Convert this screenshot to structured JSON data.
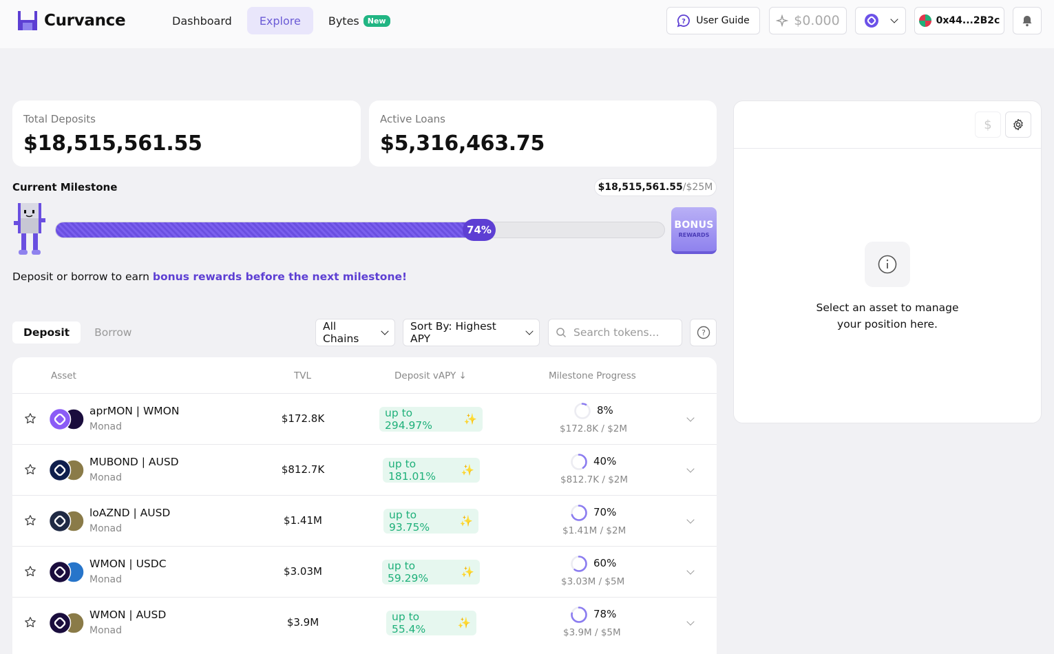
{
  "header": {
    "brand": "Curvance",
    "nav": [
      {
        "label": "Dashboard",
        "active": false
      },
      {
        "label": "Explore",
        "active": true
      },
      {
        "label": "Bytes",
        "active": false,
        "badge": "New"
      }
    ],
    "user_guide": "User Guide",
    "balance": "$0.000",
    "wallet": "0x44...2B2c"
  },
  "stats": {
    "deposits_label": "Total Deposits",
    "deposits_value": "$18,515,561.55",
    "loans_label": "Active Loans",
    "loans_value": "$5,316,463.75"
  },
  "milestone": {
    "title": "Current Milestone",
    "current": "$18,515,561.55",
    "target": "/$25M",
    "progress": 74,
    "progress_label": "74%",
    "bonus_line1": "BONUS",
    "bonus_line2": "REWARDS",
    "text_prefix": "Deposit or borrow to earn ",
    "text_highlight": "bonus rewards before the next milestone!"
  },
  "controls": {
    "tabs": [
      "Deposit",
      "Borrow"
    ],
    "chains": "All Chains",
    "sort": "Sort By: Highest APY",
    "search_placeholder": "Search tokens..."
  },
  "table": {
    "headers": {
      "asset": "Asset",
      "tvl": "TVL",
      "apy": "Deposit vAPY",
      "milestone": "Milestone Progress"
    },
    "rows": [
      {
        "pair": "aprMON | WMON",
        "chain": "Monad",
        "tvl": "$172.8K",
        "apy": "up to 294.97%",
        "progress": 8,
        "pct": "8%",
        "sub": "$172.8K / $2M"
      },
      {
        "pair": "MUBOND | AUSD",
        "chain": "Monad",
        "tvl": "$812.7K",
        "apy": "up to 181.01%",
        "progress": 40,
        "pct": "40%",
        "sub": "$812.7K / $2M"
      },
      {
        "pair": "loAZND | AUSD",
        "chain": "Monad",
        "tvl": "$1.41M",
        "apy": "up to 93.75%",
        "progress": 70,
        "pct": "70%",
        "sub": "$1.41M / $2M"
      },
      {
        "pair": "WMON | USDC",
        "chain": "Monad",
        "tvl": "$3.03M",
        "apy": "up to 59.29%",
        "progress": 60,
        "pct": "60%",
        "sub": "$3.03M / $5M"
      },
      {
        "pair": "WMON | AUSD",
        "chain": "Monad",
        "tvl": "$3.9M",
        "apy": "up to 55.4%",
        "progress": 78,
        "pct": "78%",
        "sub": "$3.9M / $5M"
      }
    ]
  },
  "panel": {
    "line1": "Select an asset to manage",
    "line2": "your position here."
  },
  "colors": {
    "accent": "#5d3fd3",
    "green": "#1fb07a",
    "ring": "#8b7cf0"
  }
}
